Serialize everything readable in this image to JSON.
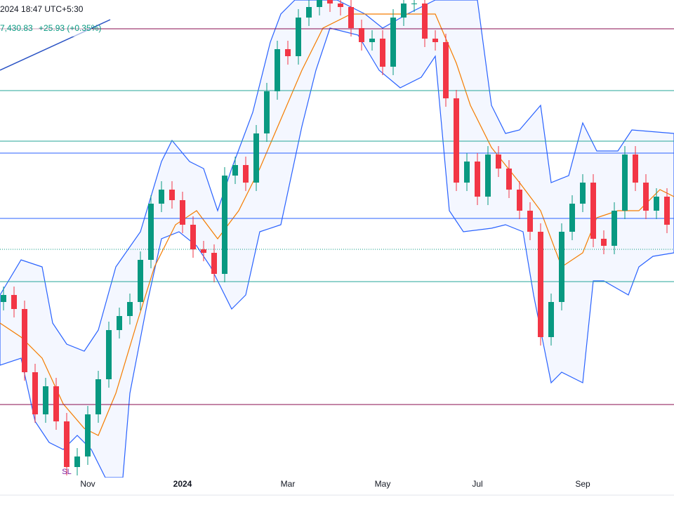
{
  "header": {
    "time": "2024 18:47 UTC+5:30",
    "quote": "7,430.83",
    "change": "+25.93 (+0.35%)"
  },
  "chart_data": {
    "type": "candlestick",
    "categories": [
      null,
      null,
      null,
      null,
      null,
      null,
      null,
      null,
      "Nov",
      null,
      null,
      null,
      null,
      null,
      null,
      null,
      null,
      "2024",
      null,
      null,
      null,
      null,
      null,
      null,
      null,
      null,
      null,
      "Mar",
      null,
      null,
      null,
      null,
      null,
      null,
      null,
      null,
      "May",
      null,
      null,
      null,
      null,
      null,
      null,
      null,
      null,
      "Jul",
      null,
      null,
      null,
      null,
      null,
      null,
      null,
      null,
      null,
      "Sep",
      null,
      null,
      null,
      null,
      null,
      null,
      null,
      null
    ],
    "open": [
      250,
      260,
      240,
      150,
      90,
      130,
      80,
      15,
      30,
      90,
      140,
      210,
      230,
      250,
      310,
      390,
      410,
      395,
      360,
      325,
      320,
      290,
      430,
      445,
      420,
      490,
      550,
      610,
      600,
      655,
      670,
      680,
      675,
      670,
      640,
      620,
      625,
      585,
      655,
      675,
      675,
      625,
      620,
      540,
      420,
      450,
      400,
      460,
      440,
      410,
      380,
      350,
      200,
      250,
      350,
      390,
      420,
      340,
      330,
      380,
      460,
      420,
      380,
      400
    ],
    "high": [
      272,
      272,
      252,
      162,
      142,
      142,
      92,
      42,
      102,
      152,
      222,
      242,
      262,
      322,
      402,
      422,
      422,
      407,
      372,
      337,
      332,
      442,
      457,
      457,
      502,
      562,
      622,
      622,
      667,
      682,
      692,
      692,
      687,
      682,
      652,
      637,
      637,
      667,
      687,
      687,
      687,
      637,
      632,
      552,
      462,
      462,
      472,
      472,
      452,
      422,
      392,
      362,
      262,
      362,
      402,
      432,
      432,
      352,
      392,
      472,
      472,
      432,
      412,
      412
    ],
    "low": [
      238,
      228,
      138,
      78,
      78,
      68,
      3,
      3,
      18,
      78,
      128,
      198,
      218,
      238,
      298,
      378,
      383,
      348,
      313,
      308,
      278,
      278,
      418,
      408,
      408,
      478,
      538,
      588,
      588,
      643,
      658,
      663,
      658,
      628,
      608,
      608,
      573,
      573,
      643,
      663,
      613,
      608,
      528,
      408,
      408,
      388,
      388,
      428,
      398,
      368,
      338,
      188,
      188,
      238,
      338,
      378,
      328,
      318,
      318,
      368,
      408,
      368,
      368,
      348
    ],
    "close": [
      260,
      240,
      150,
      90,
      130,
      80,
      15,
      30,
      90,
      140,
      210,
      230,
      250,
      310,
      390,
      410,
      395,
      360,
      325,
      320,
      290,
      430,
      445,
      420,
      490,
      550,
      610,
      600,
      655,
      670,
      680,
      675,
      670,
      640,
      620,
      625,
      585,
      655,
      675,
      675,
      625,
      620,
      540,
      420,
      450,
      400,
      460,
      440,
      410,
      380,
      350,
      200,
      250,
      350,
      390,
      420,
      340,
      330,
      380,
      460,
      420,
      380,
      400,
      360
    ],
    "up_color": "#089981",
    "down_color": "#f23645",
    "ylim": [
      0,
      700
    ],
    "annotation": "SL"
  }
}
